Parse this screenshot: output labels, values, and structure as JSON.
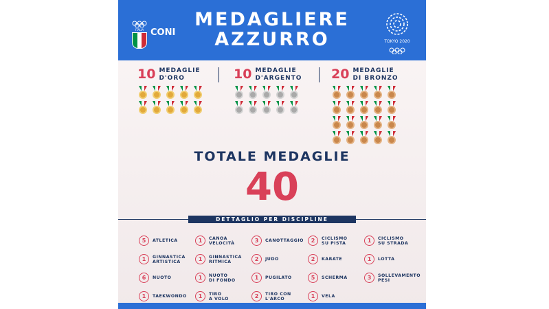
{
  "header": {
    "title_line1": "MEDAGLIERE",
    "title_line2": "AZZURRO",
    "left_logo_text": "ITALIA",
    "left_org": "CONI",
    "right_logo_text": "TOKYO 2020"
  },
  "colors": {
    "header_blue": "#2b6fd6",
    "navy": "#1d3561",
    "accent_red": "#d94058",
    "gold": "#e2a93b",
    "silver": "#a9a9a9",
    "bronze": "#c9874c"
  },
  "medals": {
    "gold": {
      "count": "10",
      "label_line1": "MEDAGLIE",
      "label_line2": "D'ORO",
      "icons": 10
    },
    "silver": {
      "count": "10",
      "label_line1": "MEDAGLIE",
      "label_line2": "D'ARGENTO",
      "icons": 10
    },
    "bronze": {
      "count": "20",
      "label_line1": "MEDAGLIE",
      "label_line2": "DI BRONZO",
      "icons": 20
    }
  },
  "totale": {
    "label": "TOTALE MEDAGLIE",
    "value": "40"
  },
  "dettaglio_label": "DETTAGLIO PER DISCIPLINE",
  "disciplines": [
    {
      "count": "5",
      "name": [
        "ATLETICA"
      ]
    },
    {
      "count": "1",
      "name": [
        "CANOA",
        "VELOCITÀ"
      ]
    },
    {
      "count": "3",
      "name": [
        "CANOTTAGGIO"
      ]
    },
    {
      "count": "2",
      "name": [
        "CICLISMO",
        "SU PISTA"
      ]
    },
    {
      "count": "1",
      "name": [
        "CICLISMO",
        "SU STRADA"
      ]
    },
    {
      "count": "1",
      "name": [
        "GINNASTICA",
        "ARTISTICA"
      ]
    },
    {
      "count": "1",
      "name": [
        "GINNASTICA",
        "RITMICA"
      ]
    },
    {
      "count": "2",
      "name": [
        "JUDO"
      ]
    },
    {
      "count": "2",
      "name": [
        "KARATE"
      ]
    },
    {
      "count": "1",
      "name": [
        "LOTTA"
      ]
    },
    {
      "count": "6",
      "name": [
        "NUOTO"
      ]
    },
    {
      "count": "1",
      "name": [
        "NUOTO",
        "DI FONDO"
      ]
    },
    {
      "count": "1",
      "name": [
        "PUGILATO"
      ]
    },
    {
      "count": "5",
      "name": [
        "SCHERMA"
      ]
    },
    {
      "count": "3",
      "name": [
        "SOLLEVAMENTO",
        "PESI"
      ]
    },
    {
      "count": "1",
      "name": [
        "TAEKWONDO"
      ]
    },
    {
      "count": "1",
      "name": [
        "TIRO",
        "A VOLO"
      ]
    },
    {
      "count": "2",
      "name": [
        "TIRO CON",
        "L'ARCO"
      ]
    },
    {
      "count": "1",
      "name": [
        "VELA"
      ]
    }
  ]
}
